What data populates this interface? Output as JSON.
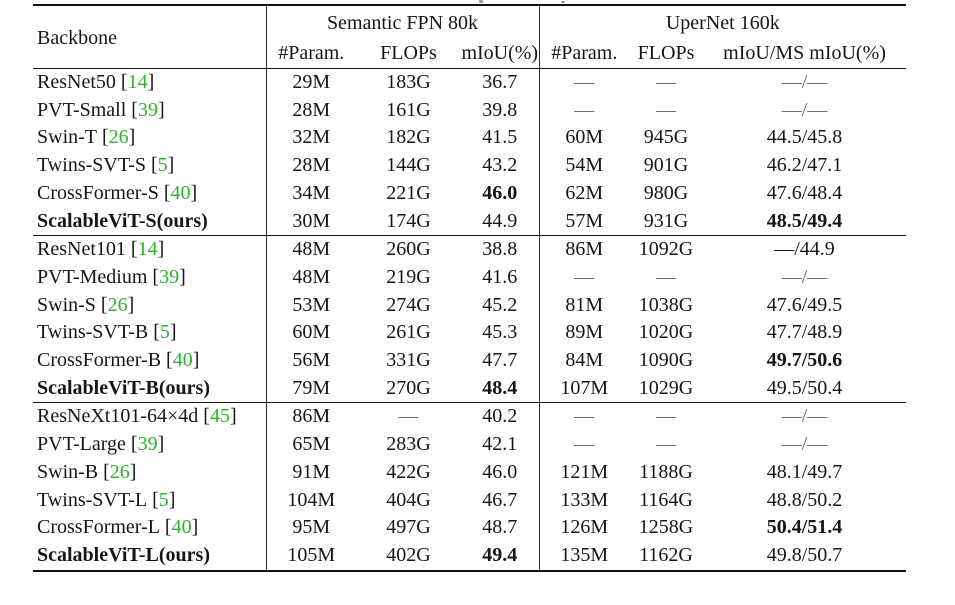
{
  "ui": {
    "lbracket": "[",
    "rbracket": "]"
  },
  "colors": {
    "citation_green": "#2cb32c",
    "text": "#161616",
    "rule": "#101010"
  },
  "table": {
    "header": {
      "backbone": "Backbone",
      "left_group": {
        "title": "Semantic FPN 80k",
        "columns": [
          "#Param.",
          "FLOPs",
          "mIoU(%)"
        ]
      },
      "right_group": {
        "title": "UperNet 160k",
        "columns": [
          "#Param.",
          "FLOPs",
          "mIoU/MS mIoU(%)"
        ]
      }
    },
    "rows": [
      {
        "name": "ResNet50",
        "cite": "14",
        "v": [
          "29M",
          "183G",
          "36.7",
          "—",
          "—",
          "—/—"
        ]
      },
      {
        "name": "PVT-Small",
        "cite": "39",
        "v": [
          "28M",
          "161G",
          "39.8",
          "—",
          "—",
          "—/—"
        ]
      },
      {
        "name": "Swin-T",
        "cite": "26",
        "v": [
          "32M",
          "182G",
          "41.5",
          "60M",
          "945G",
          "44.5/45.8"
        ]
      },
      {
        "name": "Twins-SVT-S",
        "cite": "5",
        "v": [
          "28M",
          "144G",
          "43.2",
          "54M",
          "901G",
          "46.2/47.1"
        ]
      },
      {
        "name": "CrossFormer-S",
        "cite": "40",
        "v": [
          "34M",
          "221G",
          "46.0",
          "62M",
          "980G",
          "47.6/48.4"
        ]
      },
      {
        "name": "ScalableViT-S(ours)",
        "v": [
          "30M",
          "174G",
          "44.9",
          "57M",
          "931G",
          "48.5/49.4"
        ]
      },
      {
        "name": "ResNet101",
        "cite": "14",
        "v": [
          "48M",
          "260G",
          "38.8",
          "86M",
          "1092G",
          "—/44.9"
        ]
      },
      {
        "name": "PVT-Medium",
        "cite": "39",
        "v": [
          "48M",
          "219G",
          "41.6",
          "—",
          "—",
          "—/—"
        ]
      },
      {
        "name": "Swin-S",
        "cite": "26",
        "v": [
          "53M",
          "274G",
          "45.2",
          "81M",
          "1038G",
          "47.6/49.5"
        ]
      },
      {
        "name": "Twins-SVT-B",
        "cite": "5",
        "v": [
          "60M",
          "261G",
          "45.3",
          "89M",
          "1020G",
          "47.7/48.9"
        ]
      },
      {
        "name": "CrossFormer-B",
        "cite": "40",
        "v": [
          "56M",
          "331G",
          "47.7",
          "84M",
          "1090G",
          "49.7/50.6"
        ]
      },
      {
        "name": "ScalableViT-B(ours)",
        "v": [
          "79M",
          "270G",
          "48.4",
          "107M",
          "1029G",
          "49.5/50.4"
        ]
      },
      {
        "name": "ResNeXt101-64×4d",
        "cite": "45",
        "v": [
          "86M",
          "—",
          "40.2",
          "—",
          "—",
          "—/—"
        ]
      },
      {
        "name": "PVT-Large",
        "cite": "39",
        "v": [
          "65M",
          "283G",
          "42.1",
          "—",
          "—",
          "—/—"
        ]
      },
      {
        "name": "Swin-B",
        "cite": "26",
        "v": [
          "91M",
          "422G",
          "46.0",
          "121M",
          "1188G",
          "48.1/49.7"
        ]
      },
      {
        "name": "Twins-SVT-L",
        "cite": "5",
        "v": [
          "104M",
          "404G",
          "46.7",
          "133M",
          "1164G",
          "48.8/50.2"
        ]
      },
      {
        "name": "CrossFormer-L",
        "cite": "40",
        "v": [
          "95M",
          "497G",
          "48.7",
          "126M",
          "1258G",
          "50.4/51.4"
        ]
      },
      {
        "name": "ScalableViT-L(ours)",
        "v": [
          "105M",
          "402G",
          "49.4",
          "135M",
          "1162G",
          "49.8/50.7"
        ]
      }
    ]
  }
}
